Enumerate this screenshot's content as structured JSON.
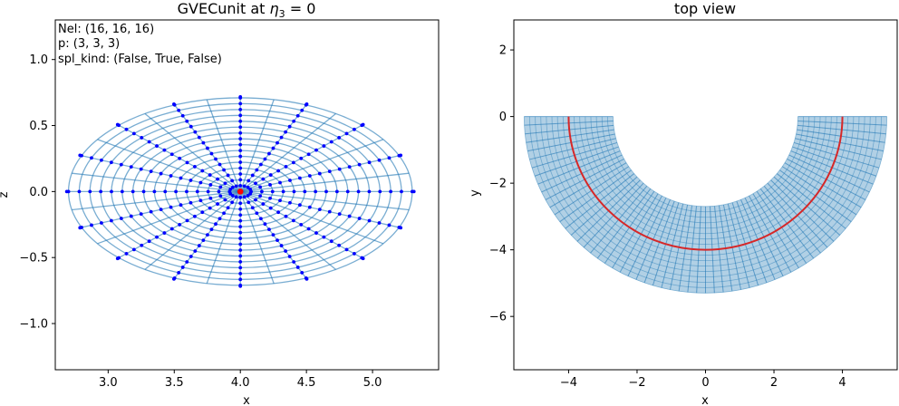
{
  "chart_data": [
    {
      "type": "line",
      "title": "GVECunit at η₃ = 0",
      "xlabel": "x",
      "ylabel": "z",
      "xlim": [
        2.6,
        5.5
      ],
      "ylim": [
        -1.35,
        1.3
      ],
      "xticks": [
        "3.0",
        "3.5",
        "4.0",
        "4.5",
        "5.0"
      ],
      "xtick_values": [
        3.0,
        3.5,
        4.0,
        4.5,
        5.0
      ],
      "yticks": [
        "−1.0",
        "−0.5",
        "0.0",
        "0.5",
        "1.0"
      ],
      "ytick_values": [
        -1.0,
        -0.5,
        0.0,
        0.5,
        1.0
      ],
      "annotations": [
        "Nel: (16, 16, 16)",
        "p: (3, 3, 3)",
        "spl_kind: (False, True, False)"
      ],
      "grid": {
        "center": [
          4.0,
          0.0
        ],
        "semi_axis_x": 1.3,
        "semi_axis_z": 0.71,
        "n_rings": 16,
        "n_spokes": 32,
        "point_spokes": 16
      },
      "colors": {
        "mesh": "#1f77b4",
        "points": "#0000ff",
        "center": "#ff0000"
      }
    },
    {
      "type": "line",
      "title": "top view",
      "xlabel": "x",
      "ylabel": "y",
      "xlim": [
        -5.6,
        5.6
      ],
      "ylim": [
        -7.6,
        2.9
      ],
      "xticks": [
        "−4",
        "−2",
        "0",
        "2",
        "4"
      ],
      "xtick_values": [
        -4,
        -2,
        0,
        2,
        4
      ],
      "yticks": [
        "−6",
        "−4",
        "−2",
        "0",
        "2"
      ],
      "ytick_values": [
        -6,
        -4,
        -2,
        0,
        2
      ],
      "band": {
        "inner_radius": 2.7,
        "outer_radius": 5.3,
        "center_radius": 4.0,
        "n_radial": 64,
        "n_rings": 16
      },
      "colors": {
        "band": "#1f77b4",
        "centerline": "#d62728"
      }
    }
  ]
}
